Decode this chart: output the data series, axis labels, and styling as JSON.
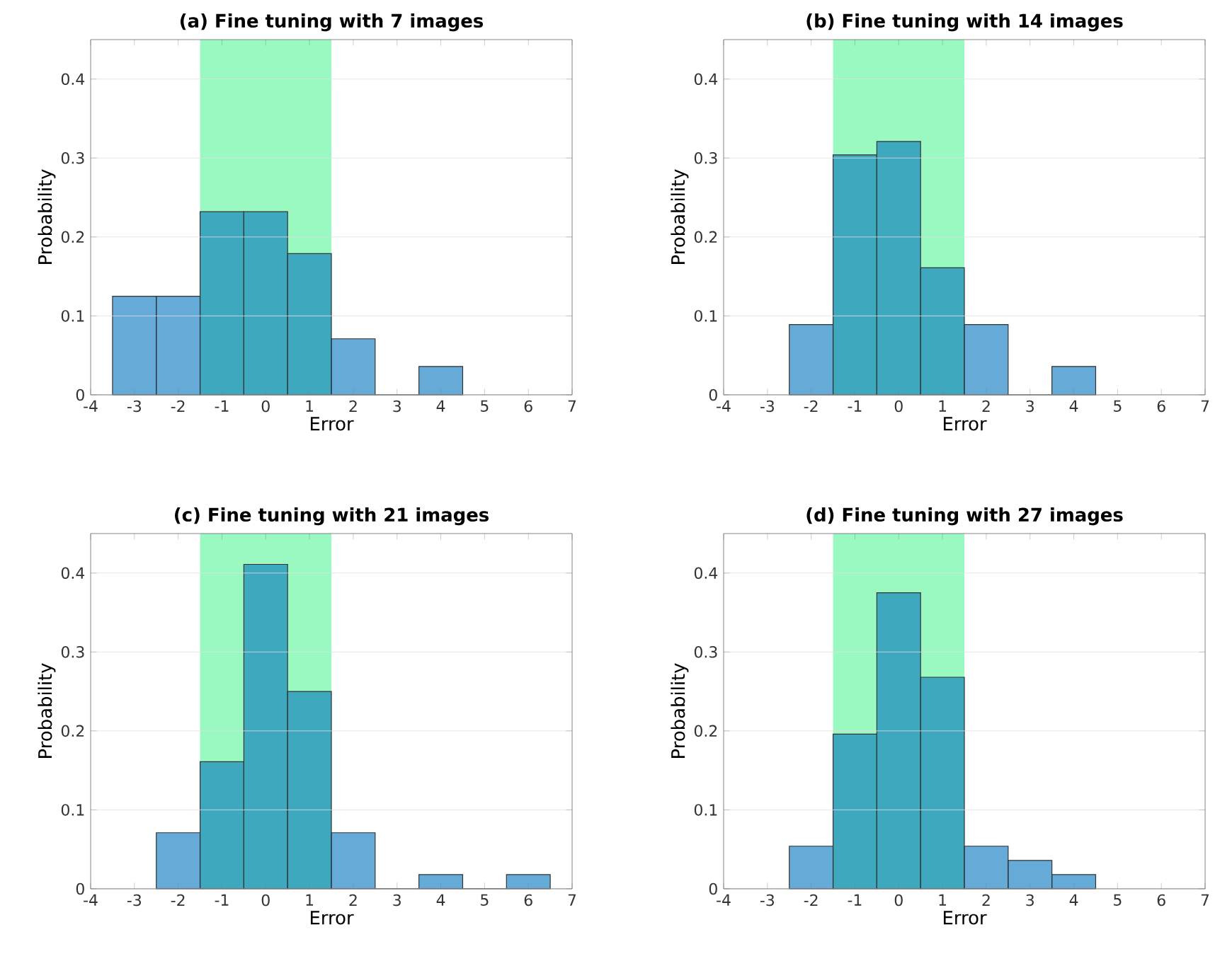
{
  "chart_data": [
    {
      "type": "histogram",
      "title": "(a) Fine tuning with 7 images",
      "xlabel": "Error",
      "ylabel": "Probability",
      "bins": [
        -3.5,
        -2.5,
        -1.5,
        -0.5,
        0.5,
        1.5,
        2.5,
        3.5,
        4.5
      ],
      "values": [
        0.125,
        0.125,
        0.232,
        0.232,
        0.179,
        0.071,
        0,
        0.036
      ],
      "color": "#0072bd",
      "xlim": [
        -4,
        7
      ],
      "ylim": [
        0,
        0.45
      ],
      "xticks": [
        -4,
        -3,
        -2,
        -1,
        0,
        1,
        2,
        3,
        4,
        5,
        6,
        7
      ],
      "yticks": [
        0,
        0.1,
        0.2,
        0.3,
        0.4
      ],
      "grid": "y",
      "bands": [
        {
          "axis": "x",
          "from": -1.5,
          "to": 1.5,
          "color": "#99f9c0"
        }
      ]
    },
    {
      "type": "histogram",
      "title": "(b) Fine tuning with 14 images",
      "xlabel": "Error",
      "ylabel": "Probability",
      "bins": [
        -2.5,
        -1.5,
        -0.5,
        0.5,
        1.5,
        2.5,
        3.5,
        4.5
      ],
      "values": [
        0.089,
        0.304,
        0.321,
        0.161,
        0.089,
        0,
        0.036
      ],
      "color": "#0072bd",
      "xlim": [
        -4,
        7
      ],
      "ylim": [
        0,
        0.45
      ],
      "xticks": [
        -4,
        -3,
        -2,
        -1,
        0,
        1,
        2,
        3,
        4,
        5,
        6,
        7
      ],
      "yticks": [
        0,
        0.1,
        0.2,
        0.3,
        0.4
      ],
      "grid": "y",
      "bands": [
        {
          "axis": "x",
          "from": -1.5,
          "to": 1.5,
          "color": "#99f9c0"
        }
      ]
    },
    {
      "type": "histogram",
      "title": "(c) Fine tuning with 21 images",
      "xlabel": "Error",
      "ylabel": "Probability",
      "bins": [
        -2.5,
        -1.5,
        -0.5,
        0.5,
        1.5,
        2.5,
        3.5,
        4.5,
        5.5,
        6.5
      ],
      "values": [
        0.071,
        0.161,
        0.411,
        0.25,
        0.071,
        0,
        0.018,
        0,
        0.018
      ],
      "color": "#0072bd",
      "xlim": [
        -4,
        7
      ],
      "ylim": [
        0,
        0.45
      ],
      "xticks": [
        -4,
        -3,
        -2,
        -1,
        0,
        1,
        2,
        3,
        4,
        5,
        6,
        7
      ],
      "yticks": [
        0,
        0.1,
        0.2,
        0.3,
        0.4
      ],
      "grid": "y",
      "bands": [
        {
          "axis": "x",
          "from": -1.5,
          "to": 1.5,
          "color": "#99f9c0"
        }
      ]
    },
    {
      "type": "histogram",
      "title": "(d) Fine tuning with 27 images",
      "xlabel": "Error",
      "ylabel": "Probability",
      "bins": [
        -2.5,
        -1.5,
        -0.5,
        0.5,
        1.5,
        2.5,
        3.5,
        4.5
      ],
      "values": [
        0.054,
        0.196,
        0.375,
        0.268,
        0.054,
        0.036,
        0.018
      ],
      "color": "#0072bd",
      "xlim": [
        -4,
        7
      ],
      "ylim": [
        0,
        0.45
      ],
      "xticks": [
        -4,
        -3,
        -2,
        -1,
        0,
        1,
        2,
        3,
        4,
        5,
        6,
        7
      ],
      "yticks": [
        0,
        0.1,
        0.2,
        0.3,
        0.4
      ],
      "grid": "y",
      "bands": [
        {
          "axis": "x",
          "from": -1.5,
          "to": 1.5,
          "color": "#99f9c0"
        }
      ]
    }
  ]
}
